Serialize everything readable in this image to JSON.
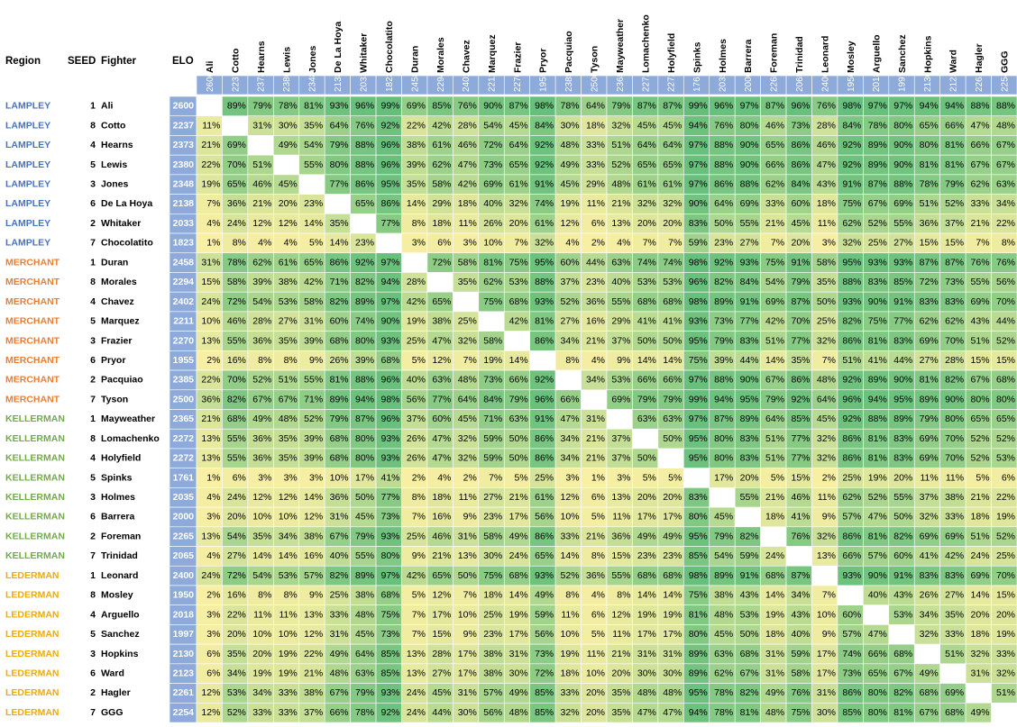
{
  "header": {
    "region": "Region",
    "seed": "SEED",
    "fighter": "Fighter",
    "elo": "ELO"
  },
  "region_colors": {
    "LAMPLEY": "#4472c4",
    "MERCHANT": "#ed7d31",
    "KELLERMAN": "#70ad47",
    "LEDERMAN": "#f2a900"
  },
  "cell_colors": [
    "#fbf0a4",
    "#63be7b"
  ],
  "elo_color": "#8eaadb",
  "fighters": [
    {
      "region": "LAMPLEY",
      "seed": 1,
      "name": "Ali",
      "elo": 2600,
      "results": [
        null,
        "89%",
        "79%",
        "78%",
        "81%",
        "93%",
        "96%",
        "99%",
        "69%",
        "85%",
        "76%",
        "90%",
        "87%",
        "98%",
        "78%",
        "64%",
        "79%",
        "87%",
        "87%",
        "99%",
        "96%",
        "97%",
        "87%",
        "96%",
        "76%",
        "98%",
        "97%",
        "97%",
        "94%",
        "94%",
        "88%",
        "88%"
      ]
    },
    {
      "region": "LAMPLEY",
      "seed": 8,
      "name": "Cotto",
      "elo": 2237,
      "results": [
        "11%",
        null,
        "31%",
        "30%",
        "35%",
        "64%",
        "76%",
        "92%",
        "22%",
        "42%",
        "28%",
        "54%",
        "45%",
        "84%",
        "30%",
        "18%",
        "32%",
        "45%",
        "45%",
        "94%",
        "76%",
        "80%",
        "46%",
        "73%",
        "28%",
        "84%",
        "78%",
        "80%",
        "65%",
        "66%",
        "47%",
        "48%"
      ]
    },
    {
      "region": "LAMPLEY",
      "seed": 4,
      "name": "Hearns",
      "elo": 2373,
      "results": [
        "21%",
        "69%",
        null,
        "49%",
        "54%",
        "79%",
        "88%",
        "96%",
        "38%",
        "61%",
        "46%",
        "72%",
        "64%",
        "92%",
        "48%",
        "33%",
        "51%",
        "64%",
        "64%",
        "97%",
        "88%",
        "90%",
        "65%",
        "86%",
        "46%",
        "92%",
        "89%",
        "90%",
        "80%",
        "81%",
        "66%",
        "67%"
      ]
    },
    {
      "region": "LAMPLEY",
      "seed": 5,
      "name": "Lewis",
      "elo": 2380,
      "results": [
        "22%",
        "70%",
        "51%",
        null,
        "55%",
        "80%",
        "88%",
        "96%",
        "39%",
        "62%",
        "47%",
        "73%",
        "65%",
        "92%",
        "49%",
        "33%",
        "52%",
        "65%",
        "65%",
        "97%",
        "88%",
        "90%",
        "66%",
        "86%",
        "47%",
        "92%",
        "89%",
        "90%",
        "81%",
        "81%",
        "67%",
        "67%"
      ]
    },
    {
      "region": "LAMPLEY",
      "seed": 3,
      "name": "Jones",
      "elo": 2348,
      "results": [
        "19%",
        "65%",
        "46%",
        "45%",
        null,
        "77%",
        "86%",
        "95%",
        "35%",
        "58%",
        "42%",
        "69%",
        "61%",
        "91%",
        "45%",
        "29%",
        "48%",
        "61%",
        "61%",
        "97%",
        "86%",
        "88%",
        "62%",
        "84%",
        "43%",
        "91%",
        "87%",
        "88%",
        "78%",
        "79%",
        "62%",
        "63%"
      ]
    },
    {
      "region": "LAMPLEY",
      "seed": 6,
      "name": "De La Hoya",
      "elo": 2138,
      "results": [
        "7%",
        "36%",
        "21%",
        "20%",
        "23%",
        null,
        "65%",
        "86%",
        "14%",
        "29%",
        "18%",
        "40%",
        "32%",
        "74%",
        "19%",
        "11%",
        "21%",
        "32%",
        "32%",
        "90%",
        "64%",
        "69%",
        "33%",
        "60%",
        "18%",
        "75%",
        "67%",
        "69%",
        "51%",
        "52%",
        "33%",
        "34%"
      ]
    },
    {
      "region": "LAMPLEY",
      "seed": 2,
      "name": "Whitaker",
      "elo": 2033,
      "results": [
        "4%",
        "24%",
        "12%",
        "12%",
        "14%",
        "35%",
        null,
        "77%",
        "8%",
        "18%",
        "11%",
        "26%",
        "20%",
        "61%",
        "12%",
        "6%",
        "13%",
        "20%",
        "20%",
        "83%",
        "50%",
        "55%",
        "21%",
        "45%",
        "11%",
        "62%",
        "52%",
        "55%",
        "36%",
        "37%",
        "21%",
        "22%"
      ]
    },
    {
      "region": "LAMPLEY",
      "seed": 7,
      "name": "Chocolatito",
      "elo": 1823,
      "results": [
        "1%",
        "8%",
        "4%",
        "4%",
        "5%",
        "14%",
        "23%",
        null,
        "3%",
        "6%",
        "3%",
        "10%",
        "7%",
        "32%",
        "4%",
        "2%",
        "4%",
        "7%",
        "7%",
        "59%",
        "23%",
        "27%",
        "7%",
        "20%",
        "3%",
        "32%",
        "25%",
        "27%",
        "15%",
        "15%",
        "7%",
        "8%"
      ]
    },
    {
      "region": "MERCHANT",
      "seed": 1,
      "name": "Duran",
      "elo": 2458,
      "results": [
        "31%",
        "78%",
        "62%",
        "61%",
        "65%",
        "86%",
        "92%",
        "97%",
        null,
        "72%",
        "58%",
        "81%",
        "75%",
        "95%",
        "60%",
        "44%",
        "63%",
        "74%",
        "74%",
        "98%",
        "92%",
        "93%",
        "75%",
        "91%",
        "58%",
        "95%",
        "93%",
        "93%",
        "87%",
        "87%",
        "76%",
        "76%"
      ]
    },
    {
      "region": "MERCHANT",
      "seed": 8,
      "name": "Morales",
      "elo": 2294,
      "results": [
        "15%",
        "58%",
        "39%",
        "38%",
        "42%",
        "71%",
        "82%",
        "94%",
        "28%",
        null,
        "35%",
        "62%",
        "53%",
        "88%",
        "37%",
        "23%",
        "40%",
        "53%",
        "53%",
        "96%",
        "82%",
        "84%",
        "54%",
        "79%",
        "35%",
        "88%",
        "83%",
        "85%",
        "72%",
        "73%",
        "55%",
        "56%"
      ]
    },
    {
      "region": "MERCHANT",
      "seed": 4,
      "name": "Chavez",
      "elo": 2402,
      "results": [
        "24%",
        "72%",
        "54%",
        "53%",
        "58%",
        "82%",
        "89%",
        "97%",
        "42%",
        "65%",
        null,
        "75%",
        "68%",
        "93%",
        "52%",
        "36%",
        "55%",
        "68%",
        "68%",
        "98%",
        "89%",
        "91%",
        "69%",
        "87%",
        "50%",
        "93%",
        "90%",
        "91%",
        "83%",
        "83%",
        "69%",
        "70%"
      ]
    },
    {
      "region": "MERCHANT",
      "seed": 5,
      "name": "Marquez",
      "elo": 2211,
      "results": [
        "10%",
        "46%",
        "28%",
        "27%",
        "31%",
        "60%",
        "74%",
        "90%",
        "19%",
        "38%",
        "25%",
        null,
        "42%",
        "81%",
        "27%",
        "16%",
        "29%",
        "41%",
        "41%",
        "93%",
        "73%",
        "77%",
        "42%",
        "70%",
        "25%",
        "82%",
        "75%",
        "77%",
        "62%",
        "62%",
        "43%",
        "44%"
      ]
    },
    {
      "region": "MERCHANT",
      "seed": 3,
      "name": "Frazier",
      "elo": 2270,
      "results": [
        "13%",
        "55%",
        "36%",
        "35%",
        "39%",
        "68%",
        "80%",
        "93%",
        "25%",
        "47%",
        "32%",
        "58%",
        null,
        "86%",
        "34%",
        "21%",
        "37%",
        "50%",
        "50%",
        "95%",
        "79%",
        "83%",
        "51%",
        "77%",
        "32%",
        "86%",
        "81%",
        "83%",
        "69%",
        "70%",
        "51%",
        "52%"
      ]
    },
    {
      "region": "MERCHANT",
      "seed": 6,
      "name": "Pryor",
      "elo": 1955,
      "results": [
        "2%",
        "16%",
        "8%",
        "8%",
        "9%",
        "26%",
        "39%",
        "68%",
        "5%",
        "12%",
        "7%",
        "19%",
        "14%",
        null,
        "8%",
        "4%",
        "9%",
        "14%",
        "14%",
        "75%",
        "39%",
        "44%",
        "14%",
        "35%",
        "7%",
        "51%",
        "41%",
        "44%",
        "27%",
        "28%",
        "15%",
        "15%"
      ]
    },
    {
      "region": "MERCHANT",
      "seed": 2,
      "name": "Pacquiao",
      "elo": 2385,
      "results": [
        "22%",
        "70%",
        "52%",
        "51%",
        "55%",
        "81%",
        "88%",
        "96%",
        "40%",
        "63%",
        "48%",
        "73%",
        "66%",
        "92%",
        null,
        "34%",
        "53%",
        "66%",
        "66%",
        "97%",
        "88%",
        "90%",
        "67%",
        "86%",
        "48%",
        "92%",
        "89%",
        "90%",
        "81%",
        "82%",
        "67%",
        "68%"
      ]
    },
    {
      "region": "MERCHANT",
      "seed": 7,
      "name": "Tyson",
      "elo": 2500,
      "results": [
        "36%",
        "82%",
        "67%",
        "67%",
        "71%",
        "89%",
        "94%",
        "98%",
        "56%",
        "77%",
        "64%",
        "84%",
        "79%",
        "96%",
        "66%",
        null,
        "69%",
        "79%",
        "79%",
        "99%",
        "94%",
        "95%",
        "79%",
        "92%",
        "64%",
        "96%",
        "94%",
        "95%",
        "89%",
        "90%",
        "80%",
        "80%"
      ]
    },
    {
      "region": "KELLERMAN",
      "seed": 1,
      "name": "Mayweather",
      "elo": 2365,
      "results": [
        "21%",
        "68%",
        "49%",
        "48%",
        "52%",
        "79%",
        "87%",
        "96%",
        "37%",
        "60%",
        "45%",
        "71%",
        "63%",
        "91%",
        "47%",
        "31%",
        null,
        "63%",
        "63%",
        "97%",
        "87%",
        "89%",
        "64%",
        "85%",
        "45%",
        "92%",
        "88%",
        "89%",
        "79%",
        "80%",
        "65%",
        "65%"
      ]
    },
    {
      "region": "KELLERMAN",
      "seed": 8,
      "name": "Lomachenko",
      "elo": 2272,
      "results": [
        "13%",
        "55%",
        "36%",
        "35%",
        "39%",
        "68%",
        "80%",
        "93%",
        "26%",
        "47%",
        "32%",
        "59%",
        "50%",
        "86%",
        "34%",
        "21%",
        "37%",
        null,
        "50%",
        "95%",
        "80%",
        "83%",
        "51%",
        "77%",
        "32%",
        "86%",
        "81%",
        "83%",
        "69%",
        "70%",
        "52%",
        "52%"
      ]
    },
    {
      "region": "KELLERMAN",
      "seed": 4,
      "name": "Holyfield",
      "elo": 2272,
      "results": [
        "13%",
        "55%",
        "36%",
        "35%",
        "39%",
        "68%",
        "80%",
        "93%",
        "26%",
        "47%",
        "32%",
        "59%",
        "50%",
        "86%",
        "34%",
        "21%",
        "37%",
        "50%",
        null,
        "95%",
        "80%",
        "83%",
        "51%",
        "77%",
        "32%",
        "86%",
        "81%",
        "83%",
        "69%",
        "70%",
        "52%",
        "53%"
      ]
    },
    {
      "region": "KELLERMAN",
      "seed": 5,
      "name": "Spinks",
      "elo": 1761,
      "results": [
        "1%",
        "6%",
        "3%",
        "3%",
        "3%",
        "10%",
        "17%",
        "41%",
        "2%",
        "4%",
        "2%",
        "7%",
        "5%",
        "25%",
        "3%",
        "1%",
        "3%",
        "5%",
        "5%",
        null,
        "17%",
        "20%",
        "5%",
        "15%",
        "2%",
        "25%",
        "19%",
        "20%",
        "11%",
        "11%",
        "5%",
        "6%"
      ]
    },
    {
      "region": "KELLERMAN",
      "seed": 3,
      "name": "Holmes",
      "elo": 2035,
      "results": [
        "4%",
        "24%",
        "12%",
        "12%",
        "14%",
        "36%",
        "50%",
        "77%",
        "8%",
        "18%",
        "11%",
        "27%",
        "21%",
        "61%",
        "12%",
        "6%",
        "13%",
        "20%",
        "20%",
        "83%",
        null,
        "55%",
        "21%",
        "46%",
        "11%",
        "62%",
        "52%",
        "55%",
        "37%",
        "38%",
        "21%",
        "22%"
      ]
    },
    {
      "region": "KELLERMAN",
      "seed": 6,
      "name": "Barrera",
      "elo": 2000,
      "results": [
        "3%",
        "20%",
        "10%",
        "10%",
        "12%",
        "31%",
        "45%",
        "73%",
        "7%",
        "16%",
        "9%",
        "23%",
        "17%",
        "56%",
        "10%",
        "5%",
        "11%",
        "17%",
        "17%",
        "80%",
        "45%",
        null,
        "18%",
        "41%",
        "9%",
        "57%",
        "47%",
        "50%",
        "32%",
        "33%",
        "18%",
        "19%"
      ]
    },
    {
      "region": "KELLERMAN",
      "seed": 2,
      "name": "Foreman",
      "elo": 2265,
      "results": [
        "13%",
        "54%",
        "35%",
        "34%",
        "38%",
        "67%",
        "79%",
        "93%",
        "25%",
        "46%",
        "31%",
        "58%",
        "49%",
        "86%",
        "33%",
        "21%",
        "36%",
        "49%",
        "49%",
        "95%",
        "79%",
        "82%",
        null,
        "76%",
        "32%",
        "86%",
        "81%",
        "82%",
        "69%",
        "69%",
        "51%",
        "52%"
      ]
    },
    {
      "region": "KELLERMAN",
      "seed": 7,
      "name": "Trinidad",
      "elo": 2065,
      "results": [
        "4%",
        "27%",
        "14%",
        "14%",
        "16%",
        "40%",
        "55%",
        "80%",
        "9%",
        "21%",
        "13%",
        "30%",
        "24%",
        "65%",
        "14%",
        "8%",
        "15%",
        "23%",
        "23%",
        "85%",
        "54%",
        "59%",
        "24%",
        null,
        "13%",
        "66%",
        "57%",
        "60%",
        "41%",
        "42%",
        "24%",
        "25%"
      ]
    },
    {
      "region": "LEDERMAN",
      "seed": 1,
      "name": "Leonard",
      "elo": 2400,
      "results": [
        "24%",
        "72%",
        "54%",
        "53%",
        "57%",
        "82%",
        "89%",
        "97%",
        "42%",
        "65%",
        "50%",
        "75%",
        "68%",
        "93%",
        "52%",
        "36%",
        "55%",
        "68%",
        "68%",
        "98%",
        "89%",
        "91%",
        "68%",
        "87%",
        null,
        "93%",
        "90%",
        "91%",
        "83%",
        "83%",
        "69%",
        "70%"
      ]
    },
    {
      "region": "LEDERMAN",
      "seed": 8,
      "name": "Mosley",
      "elo": 1950,
      "results": [
        "2%",
        "16%",
        "8%",
        "8%",
        "9%",
        "25%",
        "38%",
        "68%",
        "5%",
        "12%",
        "7%",
        "18%",
        "14%",
        "49%",
        "8%",
        "4%",
        "8%",
        "14%",
        "14%",
        "75%",
        "38%",
        "43%",
        "14%",
        "34%",
        "7%",
        null,
        "40%",
        "43%",
        "26%",
        "27%",
        "14%",
        "15%"
      ]
    },
    {
      "region": "LEDERMAN",
      "seed": 4,
      "name": "Arguello",
      "elo": 2018,
      "results": [
        "3%",
        "22%",
        "11%",
        "11%",
        "13%",
        "33%",
        "48%",
        "75%",
        "7%",
        "17%",
        "10%",
        "25%",
        "19%",
        "59%",
        "11%",
        "6%",
        "12%",
        "19%",
        "19%",
        "81%",
        "48%",
        "53%",
        "19%",
        "43%",
        "10%",
        "60%",
        null,
        "53%",
        "34%",
        "35%",
        "20%",
        "20%"
      ]
    },
    {
      "region": "LEDERMAN",
      "seed": 5,
      "name": "Sanchez",
      "elo": 1997,
      "results": [
        "3%",
        "20%",
        "10%",
        "10%",
        "12%",
        "31%",
        "45%",
        "73%",
        "7%",
        "15%",
        "9%",
        "23%",
        "17%",
        "56%",
        "10%",
        "5%",
        "11%",
        "17%",
        "17%",
        "80%",
        "45%",
        "50%",
        "18%",
        "40%",
        "9%",
        "57%",
        "47%",
        null,
        "32%",
        "33%",
        "18%",
        "19%"
      ]
    },
    {
      "region": "LEDERMAN",
      "seed": 3,
      "name": "Hopkins",
      "elo": 2130,
      "results": [
        "6%",
        "35%",
        "20%",
        "19%",
        "22%",
        "49%",
        "64%",
        "85%",
        "13%",
        "28%",
        "17%",
        "38%",
        "31%",
        "73%",
        "19%",
        "11%",
        "21%",
        "31%",
        "31%",
        "89%",
        "63%",
        "68%",
        "31%",
        "59%",
        "17%",
        "74%",
        "66%",
        "68%",
        null,
        "51%",
        "32%",
        "33%"
      ]
    },
    {
      "region": "LEDERMAN",
      "seed": 6,
      "name": "Ward",
      "elo": 2123,
      "results": [
        "6%",
        "34%",
        "19%",
        "19%",
        "21%",
        "48%",
        "63%",
        "85%",
        "13%",
        "27%",
        "17%",
        "38%",
        "30%",
        "72%",
        "18%",
        "10%",
        "20%",
        "30%",
        "30%",
        "89%",
        "62%",
        "67%",
        "31%",
        "58%",
        "17%",
        "73%",
        "65%",
        "67%",
        "49%",
        null,
        "31%",
        "32%"
      ]
    },
    {
      "region": "LEDERMAN",
      "seed": 2,
      "name": "Hagler",
      "elo": 2261,
      "results": [
        "12%",
        "53%",
        "34%",
        "33%",
        "38%",
        "67%",
        "79%",
        "93%",
        "24%",
        "45%",
        "31%",
        "57%",
        "49%",
        "85%",
        "33%",
        "20%",
        "35%",
        "48%",
        "48%",
        "95%",
        "78%",
        "82%",
        "49%",
        "76%",
        "31%",
        "86%",
        "80%",
        "82%",
        "68%",
        "69%",
        null,
        "51%"
      ]
    },
    {
      "region": "LEDERMAN",
      "seed": 7,
      "name": "GGG",
      "elo": 2254,
      "results": [
        "12%",
        "52%",
        "33%",
        "33%",
        "37%",
        "66%",
        "78%",
        "92%",
        "24%",
        "44%",
        "30%",
        "56%",
        "48%",
        "85%",
        "32%",
        "20%",
        "35%",
        "47%",
        "47%",
        "94%",
        "78%",
        "81%",
        "48%",
        "75%",
        "30%",
        "85%",
        "80%",
        "81%",
        "67%",
        "68%",
        "49%",
        null
      ]
    }
  ]
}
